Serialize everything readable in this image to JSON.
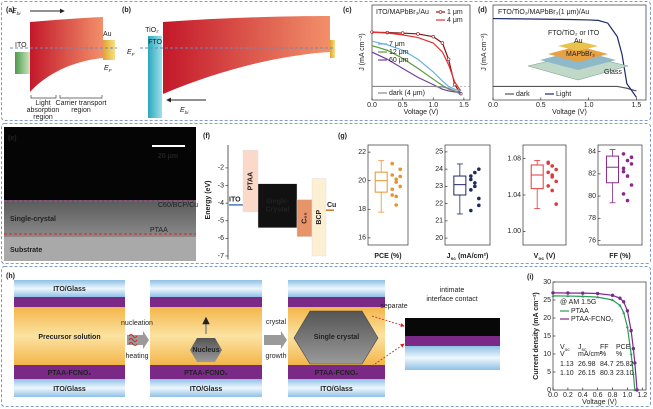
{
  "figure": {
    "a": {
      "label": "(a)",
      "ebi": [
        "E",
        "bi"
      ],
      "ito": "ITO",
      "au": "Au",
      "ef": [
        "E",
        "F"
      ],
      "light": [
        "Light",
        "absorption",
        "region"
      ],
      "carrier": [
        "Carrier transport",
        "region"
      ]
    },
    "b": {
      "label": "(b)",
      "tio2": "TiO₂",
      "fto": "FTO",
      "ef": [
        "E",
        "F"
      ],
      "ebi": [
        "E",
        "bi"
      ]
    },
    "e": {
      "label": "(e)",
      "scale": "20 μm",
      "top_layer": "C60/BCP/Cu",
      "crystal": "Single-crystal",
      "htl": "PTAA",
      "substrate": "Substrate"
    },
    "g": {
      "label": "(g)"
    },
    "h": {
      "label": "(h)",
      "stages": [
        {
          "top": "ITO/Glass",
          "middle": "Precursor solution",
          "htl": "PTAA-FCNO₂",
          "bottom": "ITO/Glass"
        },
        {
          "middle": "Nucleus",
          "htl": "PTAA-FCNO₂",
          "bottom": "ITO/Glass"
        },
        {
          "middle": "Single crystal",
          "htl": "PTAA-FCNO₂",
          "bottom": "ITO/Glass"
        },
        {
          "caption": [
            "intimate",
            "interface contact"
          ]
        }
      ],
      "arrows": [
        [
          "nucleation",
          "heating"
        ],
        [
          "crystal",
          "growth"
        ],
        [
          "separate"
        ]
      ]
    }
  },
  "chart_data": [
    {
      "type": "line",
      "panel_label": "(c)",
      "title": "ITO/MAPbBr₃/Au",
      "xlabel": "Voltage (V)",
      "ylabel": "J (mA cm⁻²)",
      "x": [
        0,
        0.25,
        0.5,
        0.75,
        1.0,
        1.15,
        1.25,
        1.35,
        1.45
      ],
      "xlim": [
        0,
        1.6
      ],
      "xticks": [
        {
          "value": 0,
          "label": "0.0"
        },
        0.5,
        {
          "value": 1,
          "label": "1.0"
        },
        1.5
      ],
      "ylim": [
        -1.5,
        9
      ],
      "zero_line": true,
      "series": [
        {
          "name": "1 μm",
          "color": "#8b1010",
          "marker": "circle",
          "values": [
            6.0,
            5.95,
            5.9,
            5.8,
            5.5,
            4.8,
            3.0,
            0.2,
            -0.8
          ]
        },
        {
          "name": "4 μm",
          "color": "#e03030",
          "values": [
            6.0,
            5.9,
            5.7,
            5.4,
            4.8,
            3.8,
            2.4,
            0.5,
            -0.5
          ]
        },
        {
          "name": "7 μm",
          "color": "#6ab0e0",
          "values": [
            5.0,
            4.6,
            4.0,
            3.0,
            1.6,
            0.6,
            0.0,
            -0.3,
            -0.5
          ]
        },
        {
          "name": "12 μm",
          "color": "#5a9a3a",
          "values": [
            4.5,
            4.0,
            3.1,
            2.0,
            0.8,
            0.1,
            -0.3,
            -0.5,
            -0.7
          ]
        },
        {
          "name": "60 μm",
          "color": "#7040a0",
          "values": [
            3.8,
            3.0,
            2.0,
            1.0,
            0.2,
            -0.3,
            -0.5,
            -0.6,
            -0.7
          ]
        },
        {
          "name": "dark (4 μm)",
          "color": "#888888",
          "values": [
            0,
            0,
            0,
            0,
            0,
            -0.05,
            -0.2,
            -0.5,
            -0.9
          ]
        }
      ]
    },
    {
      "type": "line",
      "panel_label": "(d)",
      "title": "FTO/TiO₂/MAPbBr₃(1 μm)/Au",
      "xlabel": "Voltage (V)",
      "ylabel": "J (mA cm⁻²)",
      "x": [
        0,
        0.4,
        0.8,
        1.0,
        1.1,
        1.2,
        1.3,
        1.35,
        1.4,
        1.5
      ],
      "xlim": [
        0,
        1.6
      ],
      "xticks": [
        {
          "value": 0,
          "label": "0.0"
        },
        0.5,
        {
          "value": 1,
          "label": "1.0"
        },
        1.5
      ],
      "ylim": [
        -1.5,
        9
      ],
      "inset": {
        "stack": "FTO/TiO₂ or ITO",
        "top": "Au",
        "absorber": "MAPbBr₃",
        "base": "Glass"
      },
      "series": [
        {
          "name": "dark",
          "color": "#555555",
          "values": [
            0,
            0,
            0,
            0,
            0,
            0,
            0,
            -0.1,
            -0.2,
            -0.5
          ]
        },
        {
          "name": "Light",
          "color": "#1b2a6b",
          "values": [
            7.5,
            7.45,
            7.4,
            7.35,
            7.3,
            7.0,
            5.5,
            3.5,
            0.3,
            -1.2
          ]
        }
      ]
    },
    {
      "type": "energy",
      "panel_label": "(f)",
      "ylabel": "Energy (eV)",
      "ylim": [
        -7.2,
        -0.7
      ],
      "yticks": [
        -2,
        -3,
        -4,
        -5,
        -6,
        -7
      ],
      "levels": [
        {
          "name": "ITO",
          "color": "#4a78b8",
          "values": [
            -4.1
          ]
        },
        {
          "name": "PTAA",
          "color": "#fbd9c8",
          "values": [
            -1.0,
            -4.5
          ]
        },
        {
          "name": [
            "Single-",
            "Crystal"
          ],
          "color": "#111111",
          "values": [
            -2.9,
            -5.4
          ]
        },
        {
          "name": "C₆₀",
          "color": "#e8946a",
          "values": [
            -3.8,
            -5.9
          ]
        },
        {
          "name": "BCP",
          "color": "#fdf0d2",
          "values": [
            -2.6,
            -7.0
          ]
        },
        {
          "name": "Cu",
          "color": "#c8782a",
          "values": [
            -4.4
          ]
        }
      ]
    },
    {
      "type": "box",
      "xlabel": "PCE (%)",
      "ylim": [
        15.5,
        22.5
      ],
      "yticks": [
        16,
        18,
        20,
        22
      ],
      "color": "#e8922e",
      "box": {
        "min": 17.8,
        "q1": 19.2,
        "median": 20.0,
        "q3": 20.6,
        "max": 21.4
      },
      "points": [
        20.4,
        20.1,
        19.6,
        19.0,
        18.3,
        20.8,
        21.2,
        19.9,
        20.3,
        19.4,
        18.9
      ]
    },
    {
      "type": "box",
      "xlabel": [
        "J",
        "sc",
        " (mA/cm²)"
      ],
      "ylim": [
        19.6,
        25.4
      ],
      "yticks": [
        20,
        21,
        22,
        23,
        24,
        25
      ],
      "color": "#1e2a60",
      "box": {
        "min": 21.4,
        "q1": 22.5,
        "median": 23.1,
        "q3": 23.6,
        "max": 24.3
      },
      "points": [
        23.4,
        23.0,
        22.3,
        21.6,
        23.8,
        24.0,
        22.8,
        23.2,
        21.9,
        23.6
      ]
    },
    {
      "type": "box",
      "xlabel": [
        "V",
        "oc",
        " (V)"
      ],
      "ylim": [
        0.985,
        1.095
      ],
      "yticks": [
        {
          "value": 1,
          "label": "1.00"
        },
        1.04,
        1.08
      ],
      "color": "#e03a3a",
      "box": {
        "min": 1.025,
        "q1": 1.047,
        "median": 1.062,
        "q3": 1.073,
        "max": 1.078
      },
      "points": [
        1.075,
        1.072,
        1.068,
        1.065,
        1.06,
        1.055,
        1.05,
        1.045,
        1.03,
        1.076,
        1.062
      ]
    },
    {
      "type": "box",
      "xlabel": "FF (%)",
      "ylim": [
        75.6,
        84.6
      ],
      "yticks": [
        76,
        78,
        80,
        82,
        84
      ],
      "color": "#8a2a8a",
      "box": {
        "min": 79.4,
        "q1": 81.2,
        "median": 82.6,
        "q3": 83.6,
        "max": 84.2
      },
      "points": [
        83.8,
        83.2,
        82.9,
        82.5,
        81.8,
        81.0,
        80.2,
        79.6,
        83.5,
        82.2
      ]
    },
    {
      "type": "line",
      "panel_label": "(i)",
      "xlabel": "Voltage (V)",
      "ylabel": "Current density (mA cm⁻²)",
      "x": [
        0,
        0.2,
        0.4,
        0.6,
        0.8,
        0.9,
        0.95,
        1.0,
        1.05,
        1.08,
        1.1,
        1.13
      ],
      "xlim": [
        0,
        1.25
      ],
      "xticks": [
        {
          "value": 0,
          "label": "0.0"
        },
        0.2,
        0.4,
        0.6,
        0.8,
        {
          "value": 1,
          "label": "1.0"
        },
        1.2
      ],
      "ylim": [
        0,
        30
      ],
      "yticks": [
        0,
        5,
        10,
        15,
        20,
        25,
        30
      ],
      "illumination": "@ AM 1.5G",
      "series": [
        {
          "name": "PTAA",
          "color": "#2e9a5a",
          "marker": "triangle",
          "values": [
            26.15,
            26.1,
            26.0,
            25.8,
            25.0,
            23.5,
            21.5,
            17.5,
            10.0,
            4.5,
            0,
            null
          ]
        },
        {
          "name": "PTAA-FCNO₂",
          "color": "#7b2a8c",
          "marker": "circle",
          "values": [
            26.98,
            26.95,
            26.9,
            26.8,
            26.3,
            25.5,
            24.5,
            22.0,
            16.5,
            11.5,
            7.5,
            0
          ]
        }
      ],
      "table": {
        "header": [
          [
            "V",
            "oc"
          ],
          [
            "J",
            "sc"
          ],
          "FF",
          "PCE"
        ],
        "units": [
          "V",
          "mA/cm²",
          "%",
          "%"
        ],
        "rows": [
          [
            "1.13",
            "26.98",
            "84.7",
            "25.82"
          ],
          [
            "1.10",
            "26.15",
            "80.3",
            "23.10"
          ]
        ]
      }
    }
  ]
}
